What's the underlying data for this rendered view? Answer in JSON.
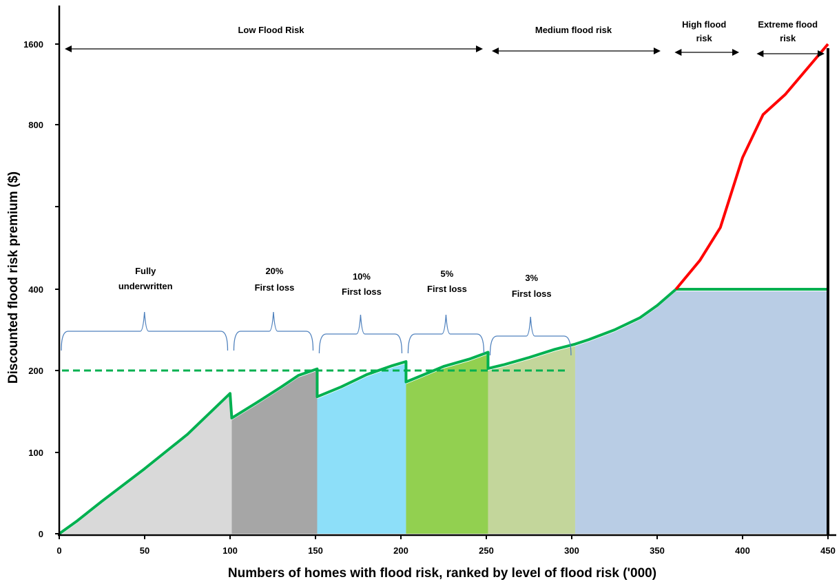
{
  "chart_data": {
    "type": "area",
    "xlabel": "Numbers of homes with flood risk, ranked by level of flood risk ('000)",
    "ylabel": "Discounted flood risk premium ($)",
    "x_ticks": [
      "0",
      "50",
      "100",
      "150",
      "200",
      "250",
      "300",
      "350",
      "400",
      "450"
    ],
    "y_ticks": [
      "0",
      "100",
      "200",
      "400",
      "800",
      "1600"
    ],
    "risk_bands": [
      {
        "label": "Low Flood Risk",
        "from": 0,
        "to": 248
      },
      {
        "label": "Medium flood risk",
        "from": 250,
        "to": 352
      },
      {
        "label": [
          "High flood",
          "risk"
        ],
        "from": 357,
        "to": 398
      },
      {
        "label": [
          "Extreme flood",
          "risk"
        ],
        "from": 405,
        "to": 448
      }
    ],
    "segments": [
      {
        "label": [
          "Fully",
          "underwritten"
        ],
        "from": 0,
        "to": 101,
        "color": "#d9d9d9"
      },
      {
        "label": [
          "20%",
          "First loss"
        ],
        "from": 101,
        "to": 151,
        "color": "#a6a6a6"
      },
      {
        "label": [
          "10%",
          "First loss"
        ],
        "from": 151,
        "to": 203,
        "color": "#8ddff9"
      },
      {
        "label": [
          "5%",
          "First loss"
        ],
        "from": 203,
        "to": 251,
        "color": "#92d050"
      },
      {
        "label": [
          "3%",
          "First loss"
        ],
        "from": 251,
        "to": 302,
        "color": "#c3d69b"
      }
    ],
    "series": [
      {
        "color": "#00b050",
        "x": [
          0,
          10,
          25,
          50,
          75,
          100,
          101,
          115,
          130,
          140,
          151,
          151,
          165,
          180,
          195,
          203,
          203,
          210,
          225,
          240,
          251,
          251,
          260,
          275,
          290,
          302,
          310,
          325,
          340,
          350,
          361,
          450
        ],
        "y": [
          0,
          15,
          40,
          80,
          122,
          172,
          142,
          160,
          180,
          194,
          204,
          168,
          180,
          195,
          212,
          222,
          186,
          192,
          210,
          228,
          245,
          205,
          214,
          232,
          252,
          265,
          276,
          300,
          330,
          360,
          400,
          400
        ]
      },
      {
        "color": "#ff0000",
        "x": [
          361,
          375,
          387,
          400,
          412,
          425,
          440,
          450
        ],
        "y": [
          400,
          470,
          550,
          720,
          900,
          1100,
          1400,
          1600
        ]
      }
    ],
    "reference_line": {
      "y": 200,
      "from": 0,
      "to": 300,
      "style": "dashed",
      "color": "#00b050"
    },
    "colors": {
      "medium_fill": "#b9cde5",
      "brace": "#4f81bd",
      "red": "#ff0000",
      "green": "#00b050"
    }
  }
}
